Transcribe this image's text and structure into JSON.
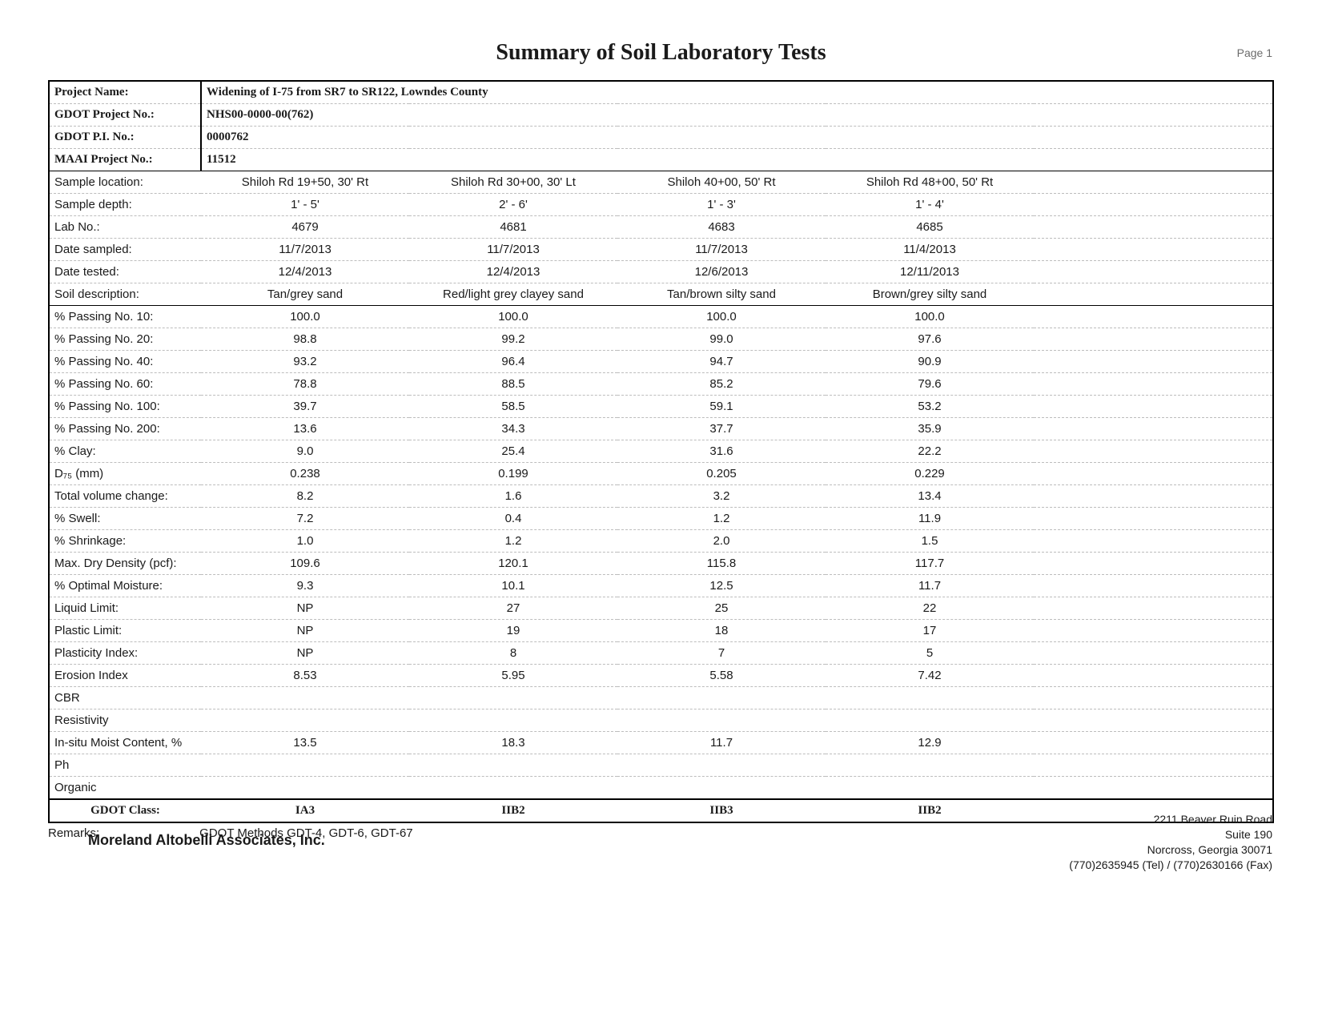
{
  "page": {
    "title": "Summary of Soil Laboratory Tests",
    "page_label": "Page 1"
  },
  "header": {
    "project_name_label": "Project Name:",
    "project_name": "Widening of I-75 from SR7 to SR122, Lowndes County",
    "gdot_project_label": "GDOT Project No.:",
    "gdot_project": "NHS00-0000-00(762)",
    "gdot_pi_label": "GDOT P.I. No.:",
    "gdot_pi": "0000762",
    "maai_label": "MAAI Project No.:",
    "maai": "11512"
  },
  "columns": {
    "c1": "Shiloh Rd 19+50, 30' Rt",
    "c2": "Shiloh Rd 30+00, 30' Lt",
    "c3": "Shiloh 40+00, 50' Rt",
    "c4": "Shiloh Rd 48+00, 50' Rt"
  },
  "rows": {
    "sample_location": {
      "label": "Sample location:"
    },
    "sample_depth": {
      "label": "Sample depth:",
      "v": [
        "1' - 5'",
        "2' - 6'",
        "1' - 3'",
        "1' - 4'"
      ]
    },
    "lab_no": {
      "label": "Lab No.:",
      "v": [
        "4679",
        "4681",
        "4683",
        "4685"
      ]
    },
    "date_sampled": {
      "label": "Date sampled:",
      "v": [
        "11/7/2013",
        "11/7/2013",
        "11/7/2013",
        "11/4/2013"
      ]
    },
    "date_tested": {
      "label": "Date tested:",
      "v": [
        "12/4/2013",
        "12/4/2013",
        "12/6/2013",
        "12/11/2013"
      ]
    },
    "soil_desc": {
      "label": "Soil description:",
      "v": [
        "Tan/grey sand",
        "Red/light grey clayey sand",
        "Tan/brown silty sand",
        "Brown/grey silty sand"
      ]
    },
    "pass10": {
      "label": "% Passing No. 10:",
      "v": [
        "100.0",
        "100.0",
        "100.0",
        "100.0"
      ]
    },
    "pass20": {
      "label": "% Passing No. 20:",
      "v": [
        "98.8",
        "99.2",
        "99.0",
        "97.6"
      ]
    },
    "pass40": {
      "label": "% Passing No. 40:",
      "v": [
        "93.2",
        "96.4",
        "94.7",
        "90.9"
      ]
    },
    "pass60": {
      "label": "% Passing No. 60:",
      "v": [
        "78.8",
        "88.5",
        "85.2",
        "79.6"
      ]
    },
    "pass100": {
      "label": "% Passing No. 100:",
      "v": [
        "39.7",
        "58.5",
        "59.1",
        "53.2"
      ]
    },
    "pass200": {
      "label": "% Passing No. 200:",
      "v": [
        "13.6",
        "34.3",
        "37.7",
        "35.9"
      ]
    },
    "clay": {
      "label": "% Clay:",
      "v": [
        "9.0",
        "25.4",
        "31.6",
        "22.2"
      ]
    },
    "d75": {
      "label": "D₇₅ (mm)",
      "v": [
        "0.238",
        "0.199",
        "0.205",
        "0.229"
      ]
    },
    "tvc": {
      "label": "Total volume change:",
      "v": [
        "8.2",
        "1.6",
        "3.2",
        "13.4"
      ]
    },
    "swell": {
      "label": "% Swell:",
      "v": [
        "7.2",
        "0.4",
        "1.2",
        "11.9"
      ]
    },
    "shrink": {
      "label": "% Shrinkage:",
      "v": [
        "1.0",
        "1.2",
        "2.0",
        "1.5"
      ]
    },
    "mdd": {
      "label": "Max. Dry Density (pcf):",
      "v": [
        "109.6",
        "120.1",
        "115.8",
        "117.7"
      ]
    },
    "omc": {
      "label": "% Optimal Moisture:",
      "v": [
        "9.3",
        "10.1",
        "12.5",
        "11.7"
      ]
    },
    "ll": {
      "label": "Liquid Limit:",
      "v": [
        "NP",
        "27",
        "25",
        "22"
      ]
    },
    "pl": {
      "label": "Plastic Limit:",
      "v": [
        "NP",
        "19",
        "18",
        "17"
      ]
    },
    "pi": {
      "label": "Plasticity Index:",
      "v": [
        "NP",
        "8",
        "7",
        "5"
      ]
    },
    "erosion": {
      "label": "Erosion Index",
      "v": [
        "8.53",
        "5.95",
        "5.58",
        "7.42"
      ]
    },
    "cbr": {
      "label": "CBR",
      "v": [
        "",
        "",
        "",
        ""
      ]
    },
    "resist": {
      "label": "Resistivity",
      "v": [
        "",
        "",
        "",
        ""
      ]
    },
    "insitu": {
      "label": "In-situ Moist Content, %",
      "v": [
        "13.5",
        "18.3",
        "11.7",
        "12.9"
      ]
    },
    "ph": {
      "label": "Ph",
      "v": [
        "",
        "",
        "",
        ""
      ]
    },
    "organic": {
      "label": "Organic",
      "v": [
        "",
        "",
        "",
        ""
      ]
    }
  },
  "footer_row": {
    "label": "GDOT Class:",
    "v": [
      "IA3",
      "IIB2",
      "IIB3",
      "IIB2"
    ]
  },
  "remarks": {
    "label": "Remarks:",
    "text": "GDOT Methods GDT-4, GDT-6, GDT-67"
  },
  "company": "Moreland Altobelli Associates, Inc.",
  "address": {
    "l1": "2211 Beaver Ruin Road",
    "l2": "Suite 190",
    "l3": "Norcross, Georgia 30071",
    "l4": "(770)2635945 (Tel) / (770)2630166 (Fax)"
  },
  "style": {
    "title_font": "Georgia serif bold 28pt",
    "body_font": "Helvetica 15px",
    "row_border": "1px dashed #bdbdbd",
    "section_border": "1.5px solid #000000",
    "outer_border": "2px solid #000000",
    "text_color": "#1a1a1a",
    "background": "#ffffff"
  }
}
